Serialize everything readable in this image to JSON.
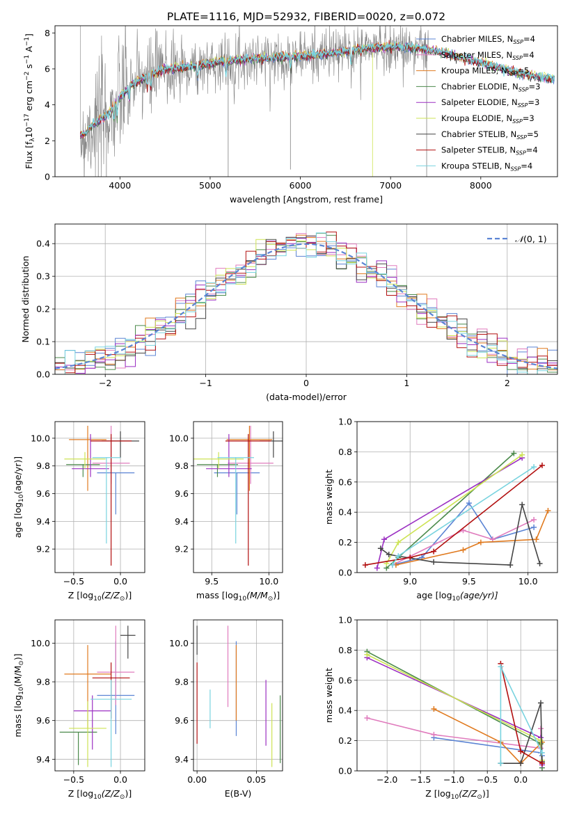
{
  "figure": {
    "title": "PLATE=1116, MJD=52932, FIBERID=0020, z=0.072"
  },
  "series_styles": [
    {
      "name": "Chabrier MILES",
      "nssp": "4",
      "color": "#5b84d4"
    },
    {
      "name": "Salpeter MILES",
      "nssp": "4",
      "color": "#e07bbd"
    },
    {
      "name": "Kroupa MILES",
      "nssp": "5",
      "color": "#e07a1f"
    },
    {
      "name": "Chabrier ELODIE",
      "nssp": "3",
      "color": "#4b8a4b"
    },
    {
      "name": "Salpeter ELODIE",
      "nssp": "3",
      "color": "#9b2fc2"
    },
    {
      "name": "Kroupa ELODIE",
      "nssp": "3",
      "color": "#cde354"
    },
    {
      "name": "Chabrier STELIB",
      "nssp": "5",
      "color": "#444444"
    },
    {
      "name": "Salpeter STELIB",
      "nssp": "4",
      "color": "#b20f0f"
    },
    {
      "name": "Kroupa STELIB",
      "nssp": "4",
      "color": "#78d3df"
    }
  ],
  "chart_data": [
    {
      "id": "spectrum",
      "type": "line",
      "xlabel": "wavelength [Angstrom, rest frame]",
      "ylabel": "Flux [f",
      "ylabel_parts": [
        "Flux [f",
        "λ",
        "10",
        "−17",
        " erg cm",
        "−2",
        " s",
        "−1",
        " A",
        "−1",
        "]"
      ],
      "xlim": [
        3280,
        8850
      ],
      "ylim": [
        0,
        8.4
      ],
      "xticks": [
        4000,
        5000,
        6000,
        7000,
        8000
      ],
      "yticks": [
        0,
        2,
        4,
        6,
        8
      ],
      "grid": false,
      "legend": "upper right",
      "legend_subscript": "SSP",
      "continuum": {
        "x": [
          3550,
          3620,
          3700,
          3800,
          3900,
          4000,
          4100,
          4200,
          4300,
          4400,
          4500,
          4700,
          4900,
          5100,
          5300,
          5600,
          6000,
          6400,
          6800,
          7200,
          7500,
          7800,
          8100,
          8400,
          8800
        ],
        "y": [
          2.3,
          2.4,
          2.9,
          3.2,
          3.7,
          4.4,
          5.0,
          5.3,
          5.6,
          5.8,
          6.0,
          6.1,
          6.2,
          6.4,
          6.5,
          6.6,
          6.7,
          6.9,
          7.2,
          7.2,
          7.0,
          6.6,
          6.2,
          5.8,
          5.4
        ]
      },
      "absorption_lines": [
        {
          "x": 3934,
          "y": 4.2
        },
        {
          "x": 3969,
          "y": 4.4
        },
        {
          "x": 4102,
          "y": 5.0
        },
        {
          "x": 4304,
          "y": 5.3
        },
        {
          "x": 4341,
          "y": 5.5
        },
        {
          "x": 4861,
          "y": 5.9
        },
        {
          "x": 5175,
          "y": 6.0
        },
        {
          "x": 5893,
          "y": 6.3
        },
        {
          "x": 6563,
          "y": 6.6
        }
      ],
      "data_note_points": [
        {
          "x": 3600,
          "y": 1.6
        },
        {
          "x": 3750,
          "y": 2.5
        },
        {
          "x": 3830,
          "y": 3.3
        },
        {
          "x": 4000,
          "y": 4.7
        },
        {
          "x": 4500,
          "y": 6.1
        },
        {
          "x": 5200,
          "y": 6.3
        },
        {
          "x": 6000,
          "y": 6.7
        },
        {
          "x": 6800,
          "y": 7.3
        },
        {
          "x": 7400,
          "y": 7.2
        }
      ]
    },
    {
      "id": "residuals",
      "type": "line",
      "xlabel": "(data-model)/error",
      "ylabel": "Normed distribution",
      "xlim": [
        -2.5,
        2.5
      ],
      "ylim": [
        0,
        0.46
      ],
      "xticks": [
        -2,
        -1,
        0,
        1,
        2
      ],
      "xtick_labels": [
        "−2",
        "−1",
        "0",
        "1",
        "2"
      ],
      "yticks": [
        0.0,
        0.1,
        0.2,
        0.3,
        0.4
      ],
      "ytick_labels": [
        "0.0",
        "0.1",
        "0.2",
        "0.3",
        "0.4"
      ],
      "grid": true,
      "legend": "upper right",
      "normal_label_parts": [
        "𝒩",
        "(0, 1)"
      ],
      "bin_width": 0.1
    },
    {
      "id": "age_vs_Z",
      "type": "scatter",
      "xlabel_parts": [
        "Z [log",
        "10",
        "(Z/Z",
        "⊙",
        ")]"
      ],
      "ylabel_parts": [
        "age  [log",
        "10",
        "(age/yr)]"
      ],
      "xlim": [
        -0.7,
        0.26
      ],
      "ylim": [
        9.03,
        10.12
      ],
      "xticks": [
        -0.5,
        0.0
      ],
      "xtick_labels": [
        "−0.5",
        "0.0"
      ],
      "yticks": [
        9.2,
        9.4,
        9.6,
        9.8,
        10.0
      ],
      "ytick_labels": [
        "9.2",
        "9.4",
        "9.6",
        "9.8",
        "10.0"
      ],
      "grid": true,
      "points": [
        {
          "s": 0,
          "x": -0.05,
          "y": 9.75,
          "xerr": 0.2,
          "yerr": [
            0.3,
            0.0
          ]
        },
        {
          "s": 1,
          "x": -0.1,
          "y": 9.82,
          "xerr": 0.2,
          "yerr": [
            0.15,
            0.27
          ]
        },
        {
          "s": 2,
          "x": -0.35,
          "y": 9.99,
          "xerr": 0.2,
          "yerr": [
            0.37,
            0.1
          ]
        },
        {
          "s": 3,
          "x": -0.4,
          "y": 9.81,
          "xerr": 0.18,
          "yerr": [
            0.09,
            0.0
          ]
        },
        {
          "s": 4,
          "x": -0.32,
          "y": 9.78,
          "xerr": 0.2,
          "yerr": [
            0.06,
            0.25
          ]
        },
        {
          "s": 5,
          "x": -0.38,
          "y": 9.85,
          "xerr": 0.22,
          "yerr": [
            0.07,
            0.05
          ]
        },
        {
          "s": 6,
          "x": 0.0,
          "y": 9.98,
          "xerr": 0.2,
          "yerr": [
            0.12,
            0.07
          ]
        },
        {
          "s": 7,
          "x": -0.1,
          "y": 9.98,
          "xerr": 0.22,
          "yerr": [
            0.9,
            0.05
          ]
        },
        {
          "s": 8,
          "x": -0.15,
          "y": 9.86,
          "xerr": 0.15,
          "yerr": [
            0.62,
            0.0
          ]
        }
      ]
    },
    {
      "id": "age_vs_mass",
      "type": "scatter",
      "xlabel_parts": [
        "mass [log",
        "10",
        "(M/M",
        "⊙",
        ")]"
      ],
      "xlim": [
        9.34,
        10.12
      ],
      "ylim": [
        9.03,
        10.12
      ],
      "xticks": [
        9.5,
        10.0
      ],
      "xtick_labels": [
        "9.5",
        "10.0"
      ],
      "yticks": [
        9.2,
        9.4,
        9.6,
        9.8,
        10.0
      ],
      "ytick_labels": [
        "9.2",
        "9.4",
        "9.6",
        "9.8",
        "10.0"
      ],
      "grid": true,
      "points": [
        {
          "s": 0,
          "x": 9.72,
          "y": 9.75,
          "xerr": 0.2,
          "yerr": [
            0.3,
            0.0
          ]
        },
        {
          "s": 1,
          "x": 9.84,
          "y": 9.82,
          "xerr": 0.2,
          "yerr": [
            0.15,
            0.27
          ]
        },
        {
          "s": 2,
          "x": 9.83,
          "y": 9.99,
          "xerr": 0.2,
          "yerr": [
            0.37,
            0.1
          ]
        },
        {
          "s": 3,
          "x": 9.55,
          "y": 9.81,
          "xerr": 0.18,
          "yerr": [
            0.09,
            0.0
          ]
        },
        {
          "s": 4,
          "x": 9.65,
          "y": 9.78,
          "xerr": 0.2,
          "yerr": [
            0.06,
            0.25
          ]
        },
        {
          "s": 5,
          "x": 9.56,
          "y": 9.85,
          "xerr": 0.22,
          "yerr": [
            0.07,
            0.05
          ]
        },
        {
          "s": 6,
          "x": 10.04,
          "y": 9.98,
          "xerr": 0.12,
          "yerr": [
            0.12,
            0.07
          ]
        },
        {
          "s": 7,
          "x": 9.82,
          "y": 9.98,
          "xerr": 0.2,
          "yerr": [
            0.9,
            0.05
          ]
        },
        {
          "s": 8,
          "x": 9.71,
          "y": 9.86,
          "xerr": 0.16,
          "yerr": [
            0.62,
            0.0
          ]
        }
      ]
    },
    {
      "id": "weight_vs_age",
      "type": "line",
      "xlabel_parts": [
        "age  [log",
        "10",
        "(age/yr)]"
      ],
      "ylabel": "mass weight",
      "xlim": [
        8.55,
        10.25
      ],
      "ylim": [
        0,
        1.0
      ],
      "xticks": [
        9.0,
        9.5,
        10.0
      ],
      "xtick_labels": [
        "9.0",
        "9.5",
        "10.0"
      ],
      "yticks": [
        0.0,
        0.2,
        0.4,
        0.6,
        0.8,
        1.0
      ],
      "ytick_labels": [
        "0.0",
        "0.2",
        "0.4",
        "0.6",
        "0.8",
        "1.0"
      ],
      "grid": true,
      "series": [
        {
          "s": 0,
          "x": [
            8.85,
            9.1,
            9.5,
            9.7,
            10.05
          ],
          "y": [
            0.05,
            0.1,
            0.46,
            0.22,
            0.3
          ]
        },
        {
          "s": 1,
          "x": [
            8.85,
            9.45,
            9.7,
            10.05
          ],
          "y": [
            0.05,
            0.28,
            0.22,
            0.35
          ]
        },
        {
          "s": 2,
          "x": [
            8.88,
            9.45,
            9.6,
            10.07,
            10.17
          ],
          "y": [
            0.05,
            0.15,
            0.2,
            0.22,
            0.41
          ]
        },
        {
          "s": 3,
          "x": [
            8.8,
            8.9,
            9.88
          ],
          "y": [
            0.03,
            0.1,
            0.79
          ]
        },
        {
          "s": 4,
          "x": [
            8.72,
            8.78,
            9.95
          ],
          "y": [
            0.03,
            0.22,
            0.76
          ]
        },
        {
          "s": 5,
          "x": [
            8.8,
            8.9,
            9.95
          ],
          "y": [
            0.06,
            0.2,
            0.78
          ]
        },
        {
          "s": 6,
          "x": [
            8.75,
            8.82,
            9.2,
            9.85,
            9.95,
            10.1
          ],
          "y": [
            0.16,
            0.12,
            0.07,
            0.05,
            0.45,
            0.06
          ]
        },
        {
          "s": 7,
          "x": [
            8.62,
            9.0,
            9.2,
            10.12
          ],
          "y": [
            0.05,
            0.1,
            0.14,
            0.71
          ]
        },
        {
          "s": 8,
          "x": [
            8.85,
            8.9,
            10.05
          ],
          "y": [
            0.05,
            0.11,
            0.7
          ]
        }
      ]
    },
    {
      "id": "mass_vs_Z",
      "type": "scatter",
      "xlabel_parts": [
        "Z [log",
        "10",
        "(Z/Z",
        "⊙",
        ")]"
      ],
      "ylabel_parts": [
        "mass [log",
        "10",
        "(M/M",
        "⊙",
        ")]"
      ],
      "xlim": [
        -0.7,
        0.26
      ],
      "ylim": [
        9.34,
        10.12
      ],
      "xticks": [
        -0.5,
        0.0
      ],
      "xtick_labels": [
        "−0.5",
        "0.0"
      ],
      "yticks": [
        9.4,
        9.6,
        9.8,
        10.0
      ],
      "ytick_labels": [
        "9.4",
        "9.6",
        "9.8",
        "10.0"
      ],
      "grid": true,
      "points": [
        {
          "s": 0,
          "x": -0.05,
          "y": 9.73,
          "xerr": 0.2,
          "yerr": [
            0.2,
            0.28
          ]
        },
        {
          "s": 1,
          "x": -0.05,
          "y": 9.85,
          "xerr": 0.2,
          "yerr": [
            0.17,
            0.24
          ]
        },
        {
          "s": 2,
          "x": -0.35,
          "y": 9.84,
          "xerr": 0.25,
          "yerr": [
            0.28,
            0.15
          ]
        },
        {
          "s": 3,
          "x": -0.45,
          "y": 9.54,
          "xerr": 0.2,
          "yerr": [
            0.17,
            0.0
          ]
        },
        {
          "s": 4,
          "x": -0.3,
          "y": 9.65,
          "xerr": 0.2,
          "yerr": [
            0.2,
            0.08
          ]
        },
        {
          "s": 5,
          "x": -0.35,
          "y": 9.56,
          "xerr": 0.2,
          "yerr": [
            0.2,
            0.14
          ]
        },
        {
          "s": 6,
          "x": 0.08,
          "y": 10.04,
          "xerr": 0.08,
          "yerr": [
            0.12,
            0.05
          ]
        },
        {
          "s": 7,
          "x": -0.1,
          "y": 9.82,
          "xerr": 0.2,
          "yerr": [
            0.21,
            0.08
          ]
        },
        {
          "s": 8,
          "x": -0.1,
          "y": 9.71,
          "xerr": 0.22,
          "yerr": [
            0.35,
            0.1
          ]
        }
      ]
    },
    {
      "id": "mass_vs_ebv",
      "type": "scatter",
      "xlabel": "E(B-V)",
      "xlim": [
        -0.003,
        0.072
      ],
      "ylim": [
        9.34,
        10.12
      ],
      "xticks": [
        0.0,
        0.05
      ],
      "xtick_labels": [
        "0.00",
        "0.05"
      ],
      "yticks": [
        9.4,
        9.6,
        9.8,
        10.0
      ],
      "ytick_labels": [
        "9.4",
        "9.6",
        "9.8",
        "10.0"
      ],
      "grid": true,
      "points": [
        {
          "s": 0,
          "x": 0.033,
          "y": 9.8,
          "xerr": 0.0,
          "yerr": [
            0.28,
            0.21
          ]
        },
        {
          "s": 1,
          "x": 0.026,
          "y": 9.88,
          "xerr": 0.0,
          "yerr": [
            0.21,
            0.21
          ]
        },
        {
          "s": 2,
          "x": 0.033,
          "y": 9.8,
          "xerr": 0.0,
          "yerr": [
            0.2,
            0.19
          ]
        },
        {
          "s": 3,
          "x": 0.07,
          "y": 9.55,
          "xerr": 0.0,
          "yerr": [
            0.17,
            0.18
          ]
        },
        {
          "s": 4,
          "x": 0.058,
          "y": 9.64,
          "xerr": 0.0,
          "yerr": [
            0.17,
            0.17
          ]
        },
        {
          "s": 5,
          "x": 0.063,
          "y": 9.53,
          "xerr": 0.0,
          "yerr": [
            0.17,
            0.16
          ]
        },
        {
          "s": 6,
          "x": 0.0,
          "y": 10.04,
          "xerr": 0.0,
          "yerr": [
            0.1,
            0.05
          ]
        },
        {
          "s": 7,
          "x": 0.0,
          "y": 9.69,
          "xerr": 0.0,
          "yerr": [
            0.21,
            0.21
          ]
        },
        {
          "s": 8,
          "x": 0.011,
          "y": 9.66,
          "xerr": 0.0,
          "yerr": [
            0.1,
            0.1
          ]
        }
      ]
    },
    {
      "id": "weight_vs_Z",
      "type": "line",
      "xlabel_parts": [
        "Z [log",
        "10",
        "(Z/Z",
        "⊙",
        ")]"
      ],
      "ylabel": "mass weight",
      "xlim": [
        -2.45,
        0.55
      ],
      "ylim": [
        0,
        1.0
      ],
      "xticks": [
        -2.0,
        -1.5,
        -1.0,
        -0.5,
        0.0
      ],
      "xtick_labels": [
        "−2.0",
        "−1.5",
        "−1.0",
        "−0.5",
        "0.0"
      ],
      "yticks": [
        0.0,
        0.2,
        0.4,
        0.6,
        0.8,
        1.0
      ],
      "ytick_labels": [
        "0.0",
        "0.2",
        "0.4",
        "0.6",
        "0.8",
        "1.0"
      ],
      "grid": true,
      "series": [
        {
          "s": 0,
          "x": [
            -1.3,
            0.3,
            0.32
          ],
          "y": [
            0.22,
            0.12,
            0.1
          ]
        },
        {
          "s": 1,
          "x": [
            -2.3,
            -1.3,
            0.3,
            0.3
          ],
          "y": [
            0.35,
            0.24,
            0.15,
            0.28
          ]
        },
        {
          "s": 2,
          "x": [
            -1.3,
            -0.3,
            0.0,
            0.32
          ],
          "y": [
            0.41,
            0.19,
            0.05,
            0.19
          ]
        },
        {
          "s": 3,
          "x": [
            -2.3,
            0.3,
            0.32
          ],
          "y": [
            0.79,
            0.18,
            0.02
          ]
        },
        {
          "s": 4,
          "x": [
            -2.3,
            0.3,
            0.32
          ],
          "y": [
            0.75,
            0.22,
            0.04
          ]
        },
        {
          "s": 5,
          "x": [
            -2.3,
            0.3,
            0.32
          ],
          "y": [
            0.77,
            0.2,
            0.07
          ]
        },
        {
          "s": 6,
          "x": [
            -0.3,
            0.0,
            0.3,
            0.32
          ],
          "y": [
            0.05,
            0.05,
            0.45,
            0.06
          ]
        },
        {
          "s": 7,
          "x": [
            -0.3,
            0.0,
            0.32
          ],
          "y": [
            0.71,
            0.13,
            0.05
          ]
        },
        {
          "s": 8,
          "x": [
            -0.3,
            -0.3,
            0.32
          ],
          "y": [
            0.05,
            0.69,
            0.12
          ]
        }
      ]
    }
  ]
}
